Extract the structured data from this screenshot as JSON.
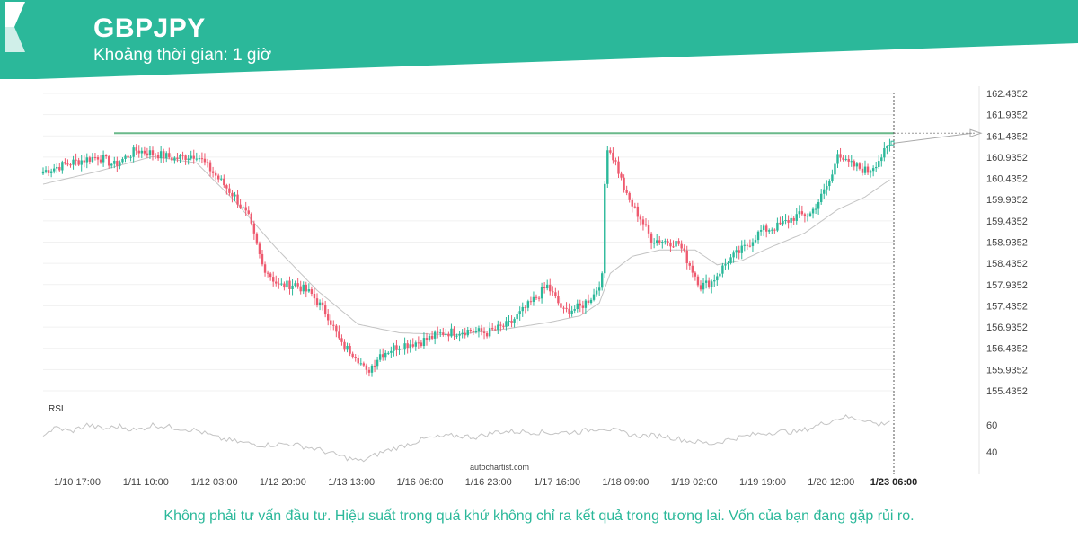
{
  "header": {
    "symbol": "GBPJPY",
    "interval_label": "Khoảng thời gian: 1 giờ",
    "logo": "autochartist-chevron-logo",
    "banner_color": "#2bb89a"
  },
  "watermark": "autochartist.com",
  "disclaimer": "Không phải tư vấn đầu tư. Hiệu suất trong quá khứ không chỉ ra kết quả trong tương lai. Vốn của bạn đang gặp rủi ro.",
  "chart_data": {
    "type": "candlestick",
    "symbol": "GBPJPY",
    "y_ticks": [
      "162.4352",
      "161.9352",
      "161.4352",
      "160.9352",
      "160.4352",
      "159.9352",
      "159.4352",
      "158.9352",
      "158.4352",
      "157.9352",
      "157.4352",
      "156.9352",
      "156.4352",
      "155.9352",
      "155.4352"
    ],
    "ylim": [
      155.4352,
      162.4352
    ],
    "x_ticks": [
      "1/10 17:00",
      "1/11 10:00",
      "1/12 03:00",
      "1/12 20:00",
      "1/13 13:00",
      "1/16 06:00",
      "1/16 23:00",
      "1/17 16:00",
      "1/18 09:00",
      "1/19 02:00",
      "1/19 19:00",
      "1/20 12:00",
      "1/23 06:00"
    ],
    "highlight_tick": "1/23 06:00",
    "resistance_level": 161.5,
    "colors": {
      "up": "#2bb89a",
      "down": "#ee5a6f",
      "resistance": "#6ab98a",
      "moving_average": "#c4c4c4",
      "rsi": "#c4c4c4"
    },
    "close_path": [
      [
        0,
        160.6
      ],
      [
        10,
        160.8
      ],
      [
        20,
        160.95
      ],
      [
        26,
        160.75
      ],
      [
        34,
        161.1
      ],
      [
        42,
        161.0
      ],
      [
        48,
        160.9
      ],
      [
        56,
        161.0
      ],
      [
        63,
        160.5
      ],
      [
        70,
        160.0
      ],
      [
        75,
        159.5
      ],
      [
        80,
        158.4
      ],
      [
        86,
        157.9
      ],
      [
        92,
        157.95
      ],
      [
        98,
        157.7
      ],
      [
        104,
        157.2
      ],
      [
        109,
        156.5
      ],
      [
        114,
        156.3
      ],
      [
        118,
        155.85
      ],
      [
        123,
        156.3
      ],
      [
        130,
        156.5
      ],
      [
        138,
        156.6
      ],
      [
        146,
        156.8
      ],
      [
        155,
        156.85
      ],
      [
        162,
        156.8
      ],
      [
        170,
        157.0
      ],
      [
        178,
        157.5
      ],
      [
        184,
        157.9
      ],
      [
        190,
        157.3
      ],
      [
        196,
        157.4
      ],
      [
        201,
        157.7
      ],
      [
        204,
        158.1
      ],
      [
        205,
        160.3
      ],
      [
        206,
        161.2
      ],
      [
        209,
        160.8
      ],
      [
        213,
        160.0
      ],
      [
        218,
        159.5
      ],
      [
        222,
        159.0
      ],
      [
        228,
        158.95
      ],
      [
        232,
        158.9
      ],
      [
        236,
        158.4
      ],
      [
        240,
        157.9
      ],
      [
        244,
        158.0
      ],
      [
        250,
        158.5
      ],
      [
        256,
        158.8
      ],
      [
        262,
        159.2
      ],
      [
        268,
        159.3
      ],
      [
        275,
        159.55
      ],
      [
        280,
        159.6
      ],
      [
        284,
        160.0
      ],
      [
        288,
        160.5
      ],
      [
        290,
        161.1
      ],
      [
        293,
        160.8
      ],
      [
        297,
        160.7
      ],
      [
        301,
        160.6
      ],
      [
        304,
        160.8
      ],
      [
        309,
        161.2
      ]
    ],
    "ma_path": [
      [
        0,
        160.3
      ],
      [
        20,
        160.6
      ],
      [
        40,
        160.95
      ],
      [
        56,
        160.8
      ],
      [
        70,
        159.9
      ],
      [
        85,
        158.8
      ],
      [
        100,
        157.8
      ],
      [
        115,
        157.0
      ],
      [
        130,
        156.8
      ],
      [
        150,
        156.75
      ],
      [
        170,
        156.9
      ],
      [
        185,
        157.05
      ],
      [
        196,
        157.2
      ],
      [
        203,
        157.5
      ],
      [
        207,
        158.2
      ],
      [
        215,
        158.6
      ],
      [
        225,
        158.75
      ],
      [
        238,
        158.75
      ],
      [
        246,
        158.4
      ],
      [
        255,
        158.5
      ],
      [
        265,
        158.8
      ],
      [
        278,
        159.15
      ],
      [
        290,
        159.7
      ],
      [
        300,
        160.0
      ],
      [
        309,
        160.4
      ]
    ],
    "rsi": {
      "label": "RSI",
      "y_ticks": [
        "60",
        "40"
      ],
      "path": [
        [
          0,
          53
        ],
        [
          5,
          58
        ],
        [
          10,
          55
        ],
        [
          16,
          60
        ],
        [
          22,
          57
        ],
        [
          28,
          59
        ],
        [
          34,
          56
        ],
        [
          40,
          60
        ],
        [
          48,
          58
        ],
        [
          56,
          56
        ],
        [
          64,
          50
        ],
        [
          72,
          47
        ],
        [
          80,
          45
        ],
        [
          90,
          46
        ],
        [
          100,
          42
        ],
        [
          110,
          36
        ],
        [
          116,
          33
        ],
        [
          124,
          40
        ],
        [
          132,
          45
        ],
        [
          140,
          50
        ],
        [
          150,
          52
        ],
        [
          158,
          51
        ],
        [
          166,
          55
        ],
        [
          176,
          55
        ],
        [
          186,
          54
        ],
        [
          196,
          55
        ],
        [
          204,
          58
        ],
        [
          208,
          56
        ],
        [
          216,
          52
        ],
        [
          226,
          52
        ],
        [
          236,
          48
        ],
        [
          244,
          46
        ],
        [
          252,
          50
        ],
        [
          260,
          53
        ],
        [
          268,
          55
        ],
        [
          276,
          55
        ],
        [
          286,
          62
        ],
        [
          292,
          66
        ],
        [
          300,
          64
        ],
        [
          305,
          60
        ],
        [
          309,
          63
        ]
      ]
    }
  }
}
